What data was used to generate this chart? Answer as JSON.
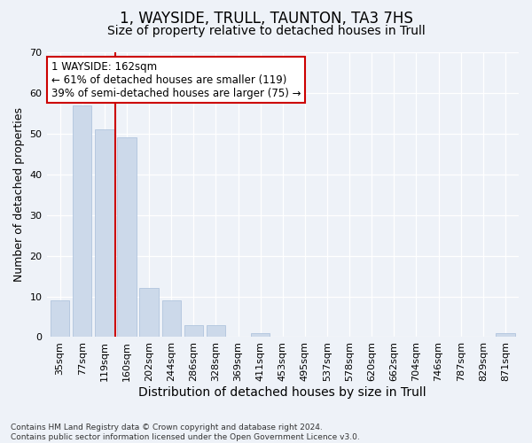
{
  "title": "1, WAYSIDE, TRULL, TAUNTON, TA3 7HS",
  "subtitle": "Size of property relative to detached houses in Trull",
  "xlabel": "Distribution of detached houses by size in Trull",
  "ylabel": "Number of detached properties",
  "bar_color": "#ccd9ea",
  "bar_edge_color": "#b0c4de",
  "categories": [
    "35sqm",
    "77sqm",
    "119sqm",
    "160sqm",
    "202sqm",
    "244sqm",
    "286sqm",
    "328sqm",
    "369sqm",
    "411sqm",
    "453sqm",
    "495sqm",
    "537sqm",
    "578sqm",
    "620sqm",
    "662sqm",
    "704sqm",
    "746sqm",
    "787sqm",
    "829sqm",
    "871sqm"
  ],
  "values": [
    9,
    57,
    51,
    49,
    12,
    9,
    3,
    3,
    0,
    1,
    0,
    0,
    0,
    0,
    0,
    0,
    0,
    0,
    0,
    0,
    1
  ],
  "ylim": [
    0,
    70
  ],
  "yticks": [
    0,
    10,
    20,
    30,
    40,
    50,
    60,
    70
  ],
  "vline_x_index": 3,
  "annotation_text_line1": "1 WAYSIDE: 162sqm",
  "annotation_text_line2": "← 61% of detached houses are smaller (119)",
  "annotation_text_line3": "39% of semi-detached houses are larger (75) →",
  "annotation_box_color": "#ffffff",
  "annotation_box_edge_color": "#cc0000",
  "vline_color": "#cc0000",
  "footer_line1": "Contains HM Land Registry data © Crown copyright and database right 2024.",
  "footer_line2": "Contains public sector information licensed under the Open Government Licence v3.0.",
  "background_color": "#eef2f8",
  "grid_color": "#ffffff",
  "title_fontsize": 12,
  "subtitle_fontsize": 10,
  "tick_fontsize": 8,
  "ylabel_fontsize": 9,
  "xlabel_fontsize": 10
}
